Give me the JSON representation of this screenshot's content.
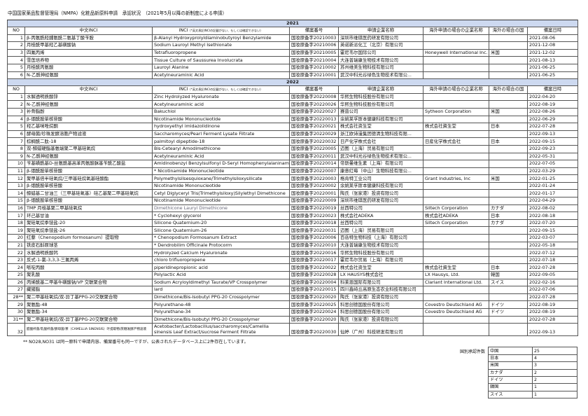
{
  "title": "中国国家薬品監督管理局（NMPA）化粧品新原料申請　承認状況　（2021年5月以降の新制度による申請）",
  "columns": {
    "no": "NO",
    "cn_inci": "中文INCI",
    "inci": "INCI",
    "inci_note": "（*英文表記INCIの記載がない、もしくは確認できない）",
    "filing_no": "備案番号",
    "applicant": "申請企業名称",
    "overseas_company": "海外申請の場合の企業名称",
    "overseas_country": "海外の場合の国",
    "date": "備案日時"
  },
  "sections": [
    {
      "year": "2021",
      "rows": [
        {
          "no": "1",
          "cn": "β-丙氨酰羟脯氨酰二氨基丁酸苄胺",
          "inci": "β-Alanyl Hydroxyprolyldiaminobutyroyl Benzylamide",
          "filing": "国妆原备字20210003",
          "applicant": "深圳市维琪医药研发有限公司",
          "ocompany": "",
          "ocountry": "",
          "date": "2021-08-06"
        },
        {
          "no": "2",
          "cn": "月桂酰甲基羟乙基磺酸钠",
          "inci": "Sodium Lauroyl Methyl Isethionate",
          "filing": "国妆原备字20210006",
          "applicant": "英诺新派化工（北京）有限公司",
          "ocompany": "",
          "ocountry": "",
          "date": "2021-12-08"
        },
        {
          "no": "3",
          "cn": "四氟丙烯",
          "inci": "Tetrafluoropropene",
          "filing": "国妆原备字20210005",
          "applicant": "霍尼韦尔国际公司",
          "ocompany": "Honeywell International Inc.",
          "ocountry": "米国",
          "date": "2021-12-02"
        },
        {
          "no": "4",
          "cn": "雪莲培养物",
          "inci": "Tissue Culture of Saussurea Involucrata",
          "filing": "国妆原备字20210004",
          "applicant": "大连普瑞康生物技术有限公司",
          "ocompany": "",
          "ocountry": "",
          "date": "2021-08-13"
        },
        {
          "no": "5",
          "cn": "月桂酰丙氨酸",
          "inci": "Lauroyl Alanine",
          "filing": "国妆原备字20210002",
          "applicant": "苏州维美生物科技有限公司",
          "ocompany": "",
          "ocountry": "",
          "date": "2021-06-25"
        },
        {
          "no": "6",
          "cn": "N-乙酰神经氨酸",
          "inci": "Acetylneuraminic Acid",
          "filing": "国妆原备字20210001",
          "applicant": "武汉中科光谷绿色生物技术有限公...",
          "ocompany": "",
          "ocountry": "",
          "date": "2021-06-25"
        }
      ]
    },
    {
      "year": "2022",
      "rows": [
        {
          "no": "1",
          "cn": "水解透明质酸锌",
          "inci": "Zinc Hydrolyzed Hyaluronate",
          "filing": "国妆原备字20220008",
          "applicant": "华熙生物科技股份有限公司",
          "ocompany": "",
          "ocountry": "",
          "date": "2022-04-20"
        },
        {
          "no": "2",
          "cn": "N-乙酰神经氨酸",
          "inci": "Acetylneuraminic acid",
          "filing": "国妆原备字20220026",
          "applicant": "华熙生物科技股份有限公司",
          "ocompany": "",
          "ocountry": "",
          "date": "2022-08-19"
        },
        {
          "no": "3",
          "cn": "补骨脂酚",
          "inci": "Bakuchiol",
          "filing": "国妆原备字20220027",
          "applicant": "赛普公司",
          "ocompany": "Sytheon Corporation",
          "ocountry": "米国",
          "date": "2022-08-26"
        },
        {
          "no": "4",
          "cn": "β-烟酰胺单核苷酸",
          "inci": "Nicotinamide Mononucleotide",
          "filing": "国妆原备字20220013",
          "applicant": "余姚莱孚斯本健康科技有限公司",
          "ocompany": "",
          "ocountry": "",
          "date": "2022-06-29"
        },
        {
          "no": "5",
          "cn": "羟乙基咪唑烷酮",
          "inci": "hydroxyethyl imidazolidinone",
          "filing": "国妆原备字20220021",
          "applicant": "株式会社资生堂",
          "ocompany": "株式会社資生堂",
          "ocountry": "日本",
          "date": "2022-07-28"
        },
        {
          "no": "6",
          "cn": "酵母菌/珍珠发酵溶胞产物滤液",
          "inci": "Saccharomyces/Pearl Ferment Lysate Filtrate",
          "filing": "国妆原备字20220029",
          "applicant": "浙江欧诗漫集团德清生物科技有限...",
          "ocompany": "",
          "ocountry": "",
          "date": "2022-09-13"
        },
        {
          "no": "7",
          "cn": "棕榈酰二肽-18",
          "inci": "palmitoyl dipeptide-18",
          "filing": "国妆原备字20220032",
          "applicant": "日产化学株式会社",
          "ocompany": "日産化学株式会社",
          "ocountry": "日本",
          "date": "2022-09-15"
        },
        {
          "no": "8",
          "cn": "双-鲸蜡硬脂基氨端聚二甲基硅氧烷",
          "inci": "Bis-Cetearyl Amodimethicone",
          "filing": "国妆原备字20220005",
          "applicant": "迈图（上海）贸易有限公司",
          "ocompany": "",
          "ocountry": "",
          "date": "2022-09-23"
        },
        {
          "no": "9",
          "cn": "N-乙酰神经氨酸",
          "inci": "Acetylneuraminic Acid",
          "filing": "国妆原备字20220011",
          "applicant": "武汉中科光谷绿色生物技术有限公...",
          "ocompany": "",
          "ocountry": "",
          "date": "2022-05-31"
        },
        {
          "no": "10",
          "cn": "苄基磺酰基D-丝氨酰基高苯丙氨酸脒基苄酰乙酸盐",
          "inci": "Amidinobenzyl Benzylsulfonyl D-Seryl Homophenylalaninamide A",
          "filing": "国妆原备字20220014",
          "applicant": "帝斯曼维生素（上海）有限公司",
          "ocompany": "",
          "ocountry": "",
          "date": "2022-07-05"
        },
        {
          "no": "11",
          "cn": "β-烟酰胺单核苷酸",
          "inci": "* Nicotinamide Mononucleotide",
          "filing": "国妆原备字20220007",
          "applicant": "康意红莓（中山）生物科技有限公...",
          "ocompany": "",
          "ocountry": "",
          "date": "2022-03-29"
        },
        {
          "no": "12",
          "cn": "聚甲基倍半硅氧烷/三甲基硅烷氧基硅酸酯",
          "inci": "Polymethylsilsesquioxane/Trimethylsiloxysilicate",
          "filing": "国妆原备字20220003",
          "applicant": "格肯特工业公司",
          "ocompany": "Grant Industries, Inc",
          "ocountry": "米国",
          "date": "2022-01-25"
        },
        {
          "no": "13",
          "cn": "β-烟酰胺单核苷酸",
          "inci": "Nicotinamide Mononucleotide",
          "filing": "国妆原备字20220002",
          "applicant": "余姚莱孚斯本健康科技有限公司",
          "ocompany": "",
          "ocountry": "",
          "date": "2022-01-24"
        },
        {
          "no": "14",
          "cn": "鲸蜡基二甘油三（三甲基硅氧基）硅乙基聚二甲基硅氧烷",
          "inci": "Cetyl Diglyceryl Tris(Trimethylsiloxy)Silylethyl Dimethicone",
          "filing": "国妆原备字20220001",
          "applicant": "陶氏（张家港）投资有限公司",
          "ocompany": "",
          "ocountry": "",
          "date": "2022-01-17"
        },
        {
          "no": "15",
          "cn": "β-烟酰胺单核苷酸",
          "inci": "Nicotinamide Mononucleotide",
          "filing": "国妆原备字20220009",
          "applicant": "深圳市维琪医药研发有限公司",
          "ocompany": "",
          "ocountry": "",
          "date": "2022-04-29"
        },
        {
          "no": "16",
          "cn": "TMP 月桂基聚二甲基硅氧烷",
          "inci": "Dimethicone Lauryl Dimethicone",
          "filing": "国妆原备字20220019",
          "applicant": "丝西特公司",
          "ocompany": "Siltech Corporation",
          "ocountry": "カナダ",
          "date": "2022-08-02",
          "dim": true
        },
        {
          "no": "17",
          "cn": "环己基甘油",
          "inci": "* Cyclohexyl glycerol",
          "filing": "国妆原备字20220023",
          "applicant": "株式会社ADEKA",
          "ocompany": "株式会社ADEKA",
          "ocountry": "日本",
          "date": "2022-08-18"
        },
        {
          "no": "18",
          "cn": "聚硅氧烷季铵盐-20",
          "inci": "Silicone Quaternium-20",
          "filing": "国妆原备字20220018",
          "applicant": "丝西特公司",
          "ocompany": "Siltech Corporation",
          "ocountry": "カナダ",
          "date": "2022-07-20"
        },
        {
          "no": "19",
          "cn": "聚硅氧烷季铵盐-26",
          "inci": "Silicone Quaternium-26",
          "filing": "国妆原备字20220031",
          "applicant": "迈图（上海）贸易有限公司",
          "ocompany": "",
          "ocountry": "",
          "date": "2022-09-15"
        },
        {
          "no": "20",
          "cn": "红藜（Chenopodium formosanum）提取物",
          "inci": "* Chenopodium Formosanum Extract",
          "filing": "国妆原备字20220006",
          "applicant": "百岳特生物科技（上海）有限公司",
          "ocompany": "",
          "ocountry": "",
          "date": "2022-03-07"
        },
        {
          "no": "21",
          "cn": "铁皮石斛原球茎",
          "inci": "* Dendrobilim Officinale Protocorm",
          "filing": "国妆原备字20220010",
          "applicant": "大连普瑞康生物技术有限公司",
          "ocompany": "",
          "ocountry": "",
          "date": "2022-05-18"
        },
        {
          "no": "22",
          "cn": "水解透明质酸钙",
          "inci": "Hydrolyzed Calcium Hyaluronate",
          "filing": "国妆原备字20220016",
          "applicant": "华熙生物科技股份有限公司",
          "ocompany": "",
          "ocountry": "",
          "date": "2022-07-12"
        },
        {
          "no": "23",
          "cn": "反式-1-氯-3,3,3-三氟丙烯",
          "inci": "chloro trifluoropropene",
          "filing": "国妆原备字20220017",
          "applicant": "霍尼韦尔贸易（上海）有限公司",
          "ocompany": "",
          "ocountry": "",
          "date": "2022-07-18"
        },
        {
          "no": "24",
          "cn": "哌啶丙酸",
          "inci": "piperidinepropionic acid",
          "filing": "国妆原备字20220022",
          "applicant": "株式会社资生堂",
          "ocompany": "株式会社資生堂",
          "ocountry": "日本",
          "date": "2022-07-28"
        },
        {
          "no": "25",
          "cn": "聚乳酸",
          "inci": "Polylactic Acid",
          "filing": "国妆原备字20220028",
          "applicant": "LX HAUSYS株式会社",
          "ocompany": "LX Hausys, Ltd.",
          "ocountry": "韓国",
          "date": "2022-09-05"
        },
        {
          "no": "26",
          "cn": "丙烯酰基二甲基牛磺酸钠/VP 交联聚合物",
          "inci": "Sodium Acryloyldimethyl Taurate/VP Crosspolymer",
          "filing": "国妆原备字20220004",
          "applicant": "科莱恩国际有限公司",
          "ocompany": "Clariant International Ltd.",
          "ocountry": "スイス",
          "date": "2022-02-16"
        },
        {
          "no": "27",
          "cn": "藏猪脂",
          "inci": "lard",
          "filing": "国妆原备字20220015",
          "applicant": "四川鑫峙丘高原生态农业科技有限公司",
          "ocompany": "",
          "ocountry": "",
          "date": "2022-07-06"
        },
        {
          "no": "28**",
          "cn": "聚二甲基硅氧烷/双-异丁基PPG-20交联聚合物",
          "inci": "Dimethicone/Bis-Isobutyl PPG-20 Crosspolymer",
          "filing": "国妆原备字20220020",
          "applicant": "陶氏（张家港）投资有限公司",
          "ocompany": "",
          "ocountry": "",
          "date": "2022-07-28"
        },
        {
          "no": "29",
          "cn": "聚氨酯-48",
          "inci": "Polyurethane-48",
          "filing": "国妆原备字20220025",
          "applicant": "科思创德国股份有限公司",
          "ocompany": "Covestro Deutschland AG",
          "ocountry": "ドイツ",
          "date": "2022-08-19"
        },
        {
          "no": "30",
          "cn": "聚氨酯-34",
          "inci": "Polyurethane-34",
          "filing": "国妆原备字20220024",
          "applicant": "科思创德国股份有限公司",
          "ocompany": "Covestro Deutschland AG",
          "ocountry": "ドイツ",
          "date": "2022-08-19"
        },
        {
          "no": "31**",
          "cn": "聚二甲基硅氧烷/双-异丁基PPG-20交联聚合物",
          "inci": "Dimethicone/Bis-Isobutyl PPG-20 Crosspolymer",
          "filing": "国妆原备字20220020",
          "applicant": "陶氏（张家港）投资有限公司",
          "ocompany": "",
          "ocountry": "",
          "date": "2022-07-28"
        },
        {
          "no": "32",
          "cn": "醋酸杆菌/乳酸杆菌/酵母菌/茶（CAMELLIA SINENSIS）叶提取物/蔗糖发酵产物滤液",
          "inci": "Acetobacter/Lactobacillus/saccharomyces/Camellia sinensis Leaf Extract/sucrose Ferment Filtrate",
          "filing": "国妆原备字20220030",
          "applicant": "仙婷（广州）科技研发有限公司",
          "ocompany": "",
          "ocountry": "",
          "date": "2022-09-13",
          "tall": true
        }
      ]
    }
  ],
  "footnote": "** NO28,NO31 は同一原料で申請内容、備案番号も同一ですが、公表されたデータベース上に2件存在しています。",
  "summary": {
    "label": "国別承認件数",
    "rows": [
      {
        "country": "中国",
        "count": "25"
      },
      {
        "country": "日本",
        "count": "4"
      },
      {
        "country": "米国",
        "count": "3"
      },
      {
        "country": "カナダ",
        "count": "2"
      },
      {
        "country": "ドイツ",
        "count": "2"
      },
      {
        "country": "韓国",
        "count": "1"
      },
      {
        "country": "スイス",
        "count": "1"
      }
    ]
  },
  "colors": {
    "year_band": "#cdd9f0",
    "border": "#555555"
  }
}
